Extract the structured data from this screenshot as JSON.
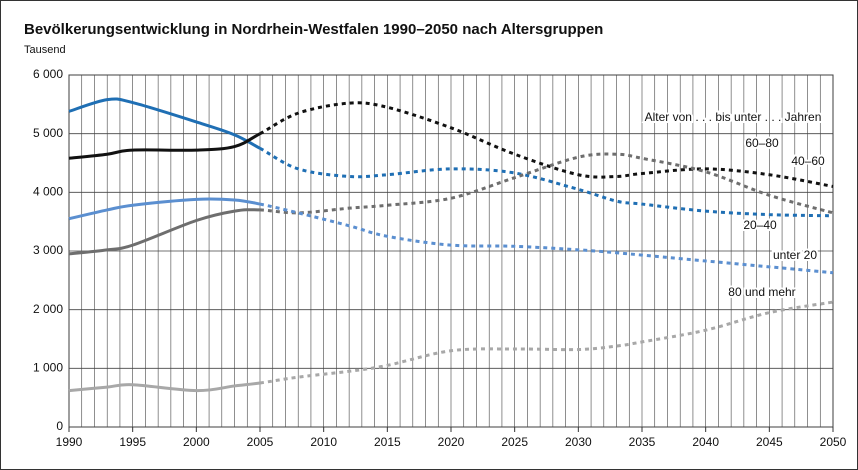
{
  "chart_data": {
    "type": "line",
    "title": "Bevölkerungsentwicklung in Nordrhein-Westfalen 1990–2050 nach Altersgruppen",
    "y_label": "Tausend",
    "annotation": "Alter von . . . bis unter . . . Jahren",
    "forecast_from": 2005,
    "x": [
      1990,
      1993,
      1995,
      2000,
      2003,
      2005,
      2008,
      2012,
      2015,
      2020,
      2025,
      2030,
      2033,
      2035,
      2040,
      2045,
      2050
    ],
    "series": [
      {
        "name": "20–40",
        "color": "#1f6fb4",
        "values": [
          5380,
          5580,
          5530,
          5200,
          4980,
          4750,
          4400,
          4270,
          4300,
          4400,
          4330,
          4050,
          3850,
          3800,
          3680,
          3620,
          3600
        ]
      },
      {
        "name": "40–60",
        "color": "#111111",
        "values": [
          4580,
          4650,
          4720,
          4720,
          4780,
          5000,
          5350,
          5520,
          5450,
          5100,
          4650,
          4300,
          4270,
          4320,
          4400,
          4300,
          4100
        ]
      },
      {
        "name": "60–80",
        "color": "#6e6e6e",
        "values": [
          2950,
          3020,
          3100,
          3520,
          3680,
          3700,
          3650,
          3730,
          3780,
          3900,
          4250,
          4600,
          4650,
          4580,
          4350,
          3950,
          3650
        ]
      },
      {
        "name": "unter 20",
        "color": "#5b8fd0",
        "values": [
          3550,
          3700,
          3780,
          3880,
          3870,
          3800,
          3650,
          3430,
          3250,
          3100,
          3080,
          3020,
          2970,
          2930,
          2830,
          2730,
          2630
        ]
      },
      {
        "name": "80 und mehr",
        "color": "#a8a8a8",
        "values": [
          620,
          680,
          720,
          620,
          700,
          750,
          850,
          950,
          1050,
          1300,
          1330,
          1320,
          1380,
          1450,
          1650,
          1950,
          2130
        ]
      }
    ],
    "xlim": [
      1990,
      2050
    ],
    "xticks": [
      1990,
      1995,
      2000,
      2005,
      2010,
      2015,
      2020,
      2025,
      2030,
      2035,
      2040,
      2045,
      2050
    ],
    "xgrid_step": 1,
    "ylim": [
      0,
      6000
    ],
    "yticks": [
      0,
      {
        "value": 1000,
        "label": "1 000"
      },
      {
        "value": 2000,
        "label": "2 000"
      },
      {
        "value": 3000,
        "label": "3 000"
      },
      {
        "value": 4000,
        "label": "4 000"
      },
      {
        "value": 5000,
        "label": "5 000"
      },
      {
        "value": 6000,
        "label": "6 000"
      }
    ],
    "grid": true
  }
}
